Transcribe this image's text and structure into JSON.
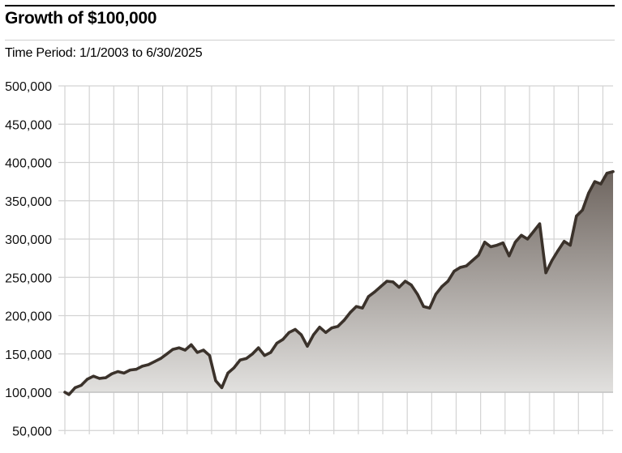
{
  "header": {
    "title": "Growth of $100,000",
    "subtitle": "Time Period: 1/1/2003 to 6/30/2025"
  },
  "colors": {
    "line": "#3b322b",
    "fill_top": "#6e655f",
    "fill_bottom": "#e3e2e0",
    "grid": "#d3d3d3",
    "baseline": "#c2c2c2"
  },
  "chart_data": {
    "type": "area",
    "x_range": [
      "2003-01",
      "2025-06"
    ],
    "ylim": [
      45000,
      500000
    ],
    "baseline": 100000,
    "grid": true,
    "y_ticks": [
      500000,
      450000,
      400000,
      350000,
      300000,
      250000,
      200000,
      150000,
      100000,
      50000
    ],
    "y_tick_labels": [
      "500,000",
      "450,000",
      "400,000",
      "350,000",
      "300,000",
      "250,000",
      "200,000",
      "150,000",
      "100,000",
      "50,000"
    ],
    "series": [
      {
        "points": [
          [
            "2003-01",
            100000
          ],
          [
            "2003-03",
            97000
          ],
          [
            "2003-06",
            106000
          ],
          [
            "2003-09",
            109000
          ],
          [
            "2003-12",
            117000
          ],
          [
            "2004-03",
            121000
          ],
          [
            "2004-06",
            118000
          ],
          [
            "2004-09",
            119000
          ],
          [
            "2004-12",
            124000
          ],
          [
            "2005-03",
            127000
          ],
          [
            "2005-06",
            125000
          ],
          [
            "2005-09",
            129000
          ],
          [
            "2005-12",
            130000
          ],
          [
            "2006-03",
            134000
          ],
          [
            "2006-06",
            136000
          ],
          [
            "2006-09",
            140000
          ],
          [
            "2006-12",
            144000
          ],
          [
            "2007-03",
            150000
          ],
          [
            "2007-06",
            156000
          ],
          [
            "2007-09",
            158000
          ],
          [
            "2007-12",
            155000
          ],
          [
            "2008-03",
            162000
          ],
          [
            "2008-06",
            152000
          ],
          [
            "2008-09",
            155000
          ],
          [
            "2008-12",
            148000
          ],
          [
            "2009-03",
            115000
          ],
          [
            "2009-06",
            106000
          ],
          [
            "2009-09",
            125000
          ],
          [
            "2009-12",
            132000
          ],
          [
            "2010-03",
            142000
          ],
          [
            "2010-06",
            144000
          ],
          [
            "2010-09",
            150000
          ],
          [
            "2010-12",
            158000
          ],
          [
            "2011-03",
            148000
          ],
          [
            "2011-06",
            152000
          ],
          [
            "2011-09",
            164000
          ],
          [
            "2011-12",
            169000
          ],
          [
            "2012-03",
            178000
          ],
          [
            "2012-06",
            182000
          ],
          [
            "2012-09",
            175000
          ],
          [
            "2012-12",
            160000
          ],
          [
            "2013-03",
            175000
          ],
          [
            "2013-06",
            185000
          ],
          [
            "2013-09",
            178000
          ],
          [
            "2013-12",
            184000
          ],
          [
            "2014-03",
            186000
          ],
          [
            "2014-06",
            194000
          ],
          [
            "2014-09",
            204000
          ],
          [
            "2014-12",
            212000
          ],
          [
            "2015-03",
            210000
          ],
          [
            "2015-06",
            225000
          ],
          [
            "2015-09",
            231000
          ],
          [
            "2015-12",
            238000
          ],
          [
            "2016-03",
            245000
          ],
          [
            "2016-06",
            244000
          ],
          [
            "2016-09",
            237000
          ],
          [
            "2016-12",
            245000
          ],
          [
            "2017-03",
            240000
          ],
          [
            "2017-06",
            228000
          ],
          [
            "2017-09",
            212000
          ],
          [
            "2017-12",
            210000
          ],
          [
            "2018-03",
            228000
          ],
          [
            "2018-06",
            238000
          ],
          [
            "2018-09",
            245000
          ],
          [
            "2018-12",
            258000
          ],
          [
            "2019-03",
            263000
          ],
          [
            "2019-06",
            265000
          ],
          [
            "2019-09",
            272000
          ],
          [
            "2019-12",
            279000
          ],
          [
            "2020-03",
            296000
          ],
          [
            "2020-06",
            290000
          ],
          [
            "2020-09",
            292000
          ],
          [
            "2020-12",
            295000
          ],
          [
            "2021-03",
            278000
          ],
          [
            "2021-06",
            296000
          ],
          [
            "2021-09",
            305000
          ],
          [
            "2021-12",
            300000
          ],
          [
            "2022-03",
            310000
          ],
          [
            "2022-06",
            320000
          ],
          [
            "2022-09",
            256000
          ],
          [
            "2022-12",
            272000
          ],
          [
            "2023-03",
            285000
          ],
          [
            "2023-06",
            297000
          ],
          [
            "2023-09",
            292000
          ],
          [
            "2023-12",
            330000
          ],
          [
            "2024-03",
            338000
          ],
          [
            "2024-06",
            360000
          ],
          [
            "2024-09",
            375000
          ],
          [
            "2024-12",
            372000
          ],
          [
            "2025-03",
            386000
          ],
          [
            "2025-06",
            388000
          ]
        ]
      }
    ]
  }
}
